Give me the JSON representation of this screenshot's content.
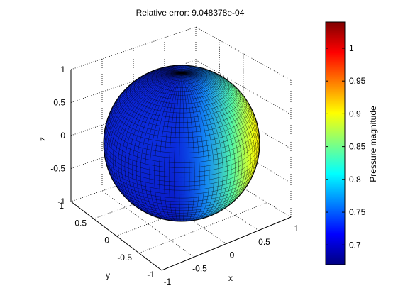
{
  "chart_data": {
    "type": "surface3d",
    "title": "Relative error: 9.048378e-04",
    "xlabel": "x",
    "ylabel": "y",
    "zlabel": "z",
    "xlim": [
      -1,
      1
    ],
    "ylim": [
      -1,
      1
    ],
    "zlim": [
      -1,
      1
    ],
    "x_ticks": [
      "-1",
      "-0.5",
      "0",
      "0.5",
      "1"
    ],
    "y_ticks": [
      "-1",
      "-0.5",
      "0",
      "0.5",
      "1"
    ],
    "z_ticks": [
      "-1",
      "-0.5",
      "0",
      "0.5",
      "1"
    ],
    "grid": true,
    "surface": "unit sphere colored by pressure magnitude",
    "colormap": "jet",
    "colorbar": {
      "label": "Pressure magnitude",
      "range": [
        0.67,
        1.04
      ],
      "ticks": [
        "0.7",
        "0.75",
        "0.8",
        "0.85",
        "0.9",
        "0.95",
        "1"
      ]
    }
  }
}
